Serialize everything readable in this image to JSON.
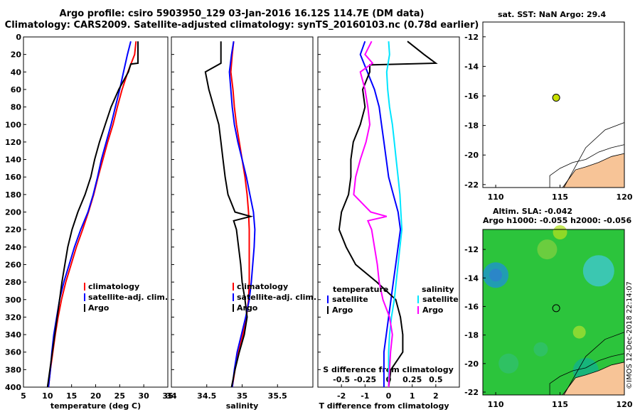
{
  "header": {
    "line1": "Argo profile: csiro 5903950_129 03-Jan-2016 16.12S 114.7E (DM data)",
    "line2": "Climatology: CARS2009. Satellite-adjusted climatology: synTS_20160103.nc (0.78d earlier)"
  },
  "colors": {
    "climatology": "#ff0000",
    "satellite": "#0000ff",
    "argo": "#000000",
    "sat_salinity": "#00e5ff",
    "argo_salinity": "#ff00ff",
    "land": "#f7c497",
    "marker": "#c8e000"
  },
  "watermark": "©IMOS 12-Dec-2018 22:14:07",
  "chart_data": [
    {
      "type": "line",
      "name": "temperature",
      "xlabel": "temperature (deg C)",
      "ylabel": "",
      "xlim": [
        5,
        35
      ],
      "ylim": [
        400,
        0
      ],
      "xticks": [
        "5",
        "10",
        "15",
        "20",
        "25",
        "30",
        "35"
      ],
      "yticks": [
        "0",
        "20",
        "40",
        "60",
        "80",
        "100",
        "120",
        "140",
        "160",
        "180",
        "200",
        "220",
        "240",
        "260",
        "280",
        "300",
        "320",
        "340",
        "360",
        "380",
        "400"
      ],
      "legend": [
        "climatology",
        "satellite-adj. clim.",
        "Argo"
      ],
      "series": [
        {
          "name": "climatology",
          "depth": [
            5,
            20,
            40,
            60,
            80,
            100,
            120,
            140,
            160,
            180,
            200,
            220,
            240,
            260,
            280,
            300,
            320,
            340,
            360,
            380,
            400
          ],
          "values": [
            28.4,
            28.1,
            26.7,
            25.5,
            24.5,
            23.6,
            22.5,
            21.5,
            20.5,
            19.6,
            18.5,
            17.3,
            16.0,
            14.9,
            13.8,
            12.9,
            12.2,
            11.6,
            11.1,
            10.6,
            10.2
          ]
        },
        {
          "name": "satellite-adj. clim.",
          "depth": [
            5,
            20,
            40,
            60,
            80,
            100,
            120,
            140,
            160,
            180,
            200,
            220,
            240,
            260,
            280,
            300,
            320,
            340,
            360,
            380,
            400
          ],
          "values": [
            27.3,
            26.6,
            25.8,
            25.0,
            24.1,
            23.2,
            22.2,
            21.2,
            20.4,
            19.5,
            18.4,
            16.9,
            15.6,
            14.5,
            13.4,
            12.5,
            11.9,
            11.3,
            10.9,
            10.6,
            10.2
          ]
        },
        {
          "name": "Argo",
          "depth": [
            5,
            30,
            31,
            40,
            60,
            80,
            100,
            120,
            140,
            160,
            180,
            200,
            220,
            240,
            260,
            280,
            300,
            320,
            340,
            360,
            380,
            400
          ],
          "values": [
            28.8,
            28.8,
            27.3,
            26.8,
            24.8,
            23.2,
            22.0,
            20.8,
            19.8,
            19.0,
            17.8,
            16.3,
            15.1,
            14.2,
            13.6,
            13.0,
            12.5,
            12.0,
            11.5,
            11.0,
            10.5,
            10.0
          ]
        }
      ]
    },
    {
      "type": "line",
      "name": "salinity",
      "xlabel": "salinity",
      "ylabel": "",
      "xlim": [
        34,
        36
      ],
      "ylim": [
        400,
        0
      ],
      "xticks": [
        "34",
        "34.5",
        "35",
        "35.5"
      ],
      "legend": [
        "climatology",
        "satellite-adj. clim.",
        "Argo"
      ],
      "series": [
        {
          "name": "climatology",
          "depth": [
            5,
            20,
            40,
            60,
            80,
            100,
            120,
            140,
            160,
            180,
            200,
            220,
            240,
            260,
            280,
            300,
            320,
            340,
            360,
            380,
            400
          ],
          "values": [
            34.88,
            34.86,
            34.84,
            34.87,
            34.89,
            34.92,
            34.96,
            35.0,
            35.04,
            35.07,
            35.09,
            35.1,
            35.1,
            35.1,
            35.1,
            35.09,
            35.06,
            35.01,
            34.95,
            34.9,
            34.86
          ]
        },
        {
          "name": "satellite-adj. clim.",
          "depth": [
            5,
            20,
            40,
            60,
            80,
            100,
            120,
            140,
            160,
            180,
            200,
            220,
            240,
            260,
            280,
            300,
            320,
            340,
            360,
            380,
            400
          ],
          "values": [
            34.88,
            34.85,
            34.82,
            34.84,
            34.86,
            34.89,
            34.94,
            35.0,
            35.06,
            35.11,
            35.16,
            35.18,
            35.17,
            35.15,
            35.13,
            35.1,
            35.05,
            34.99,
            34.93,
            34.89,
            34.86
          ]
        },
        {
          "name": "Argo",
          "depth": [
            5,
            30,
            40,
            60,
            80,
            100,
            120,
            140,
            160,
            180,
            200,
            205,
            210,
            220,
            240,
            260,
            280,
            300,
            320,
            340,
            360,
            380,
            400
          ],
          "values": [
            34.7,
            34.7,
            34.48,
            34.53,
            34.6,
            34.67,
            34.7,
            34.73,
            34.76,
            34.8,
            34.9,
            35.12,
            34.88,
            34.92,
            34.95,
            34.98,
            35.0,
            35.04,
            35.07,
            35.03,
            34.96,
            34.9,
            34.85
          ]
        }
      ]
    },
    {
      "type": "line",
      "name": "difference from climatology",
      "xlabel": "T difference from climatology",
      "x2label": "S difference from climatology",
      "xlim": [
        -3,
        3
      ],
      "x2lim": [
        -0.75,
        0.75
      ],
      "ylim": [
        400,
        0
      ],
      "xticks": [
        "-2",
        "-1",
        "0",
        "1",
        "2"
      ],
      "x2ticks": [
        "-0.5",
        "-0.25",
        "0",
        "0.25",
        "0.5"
      ],
      "legend": {
        "temperature_header": "temperature",
        "salinity_header": "salinity",
        "temperature": [
          "satellite",
          "Argo"
        ],
        "salinity": [
          "satellite",
          "Argo"
        ]
      },
      "series": [
        {
          "name": "temperature satellite",
          "axis": "T",
          "depth": [
            5,
            20,
            40,
            60,
            80,
            100,
            120,
            140,
            160,
            180,
            200,
            220,
            240,
            260,
            280,
            300,
            320,
            340,
            360,
            380,
            400
          ],
          "values": [
            -1.0,
            -1.2,
            -0.9,
            -0.6,
            -0.4,
            -0.3,
            -0.2,
            -0.1,
            0.0,
            0.2,
            0.4,
            0.5,
            0.4,
            0.3,
            0.2,
            0.1,
            0.0,
            -0.1,
            -0.2,
            -0.2,
            -0.2
          ]
        },
        {
          "name": "temperature Argo",
          "axis": "T",
          "depth": [
            5,
            20,
            30,
            32,
            40,
            60,
            80,
            100,
            120,
            140,
            160,
            180,
            200,
            220,
            240,
            260,
            280,
            300,
            320,
            340,
            360,
            380,
            400
          ],
          "values": [
            0.8,
            1.5,
            2.0,
            -0.8,
            -0.8,
            -1.1,
            -1.0,
            -1.2,
            -1.5,
            -1.6,
            -1.6,
            -1.7,
            -2.0,
            -2.1,
            -1.8,
            -1.4,
            -0.5,
            0.3,
            0.5,
            0.6,
            0.6,
            0.1,
            0.0
          ]
        },
        {
          "name": "salinity satellite",
          "axis": "S",
          "depth": [
            5,
            20,
            40,
            60,
            80,
            100,
            120,
            140,
            160,
            180,
            200,
            220,
            240,
            260,
            280,
            300,
            320,
            340,
            360,
            380,
            400
          ],
          "values": [
            0.0,
            0.01,
            -0.02,
            -0.01,
            0.01,
            0.04,
            0.06,
            0.08,
            0.1,
            0.12,
            0.13,
            0.14,
            0.12,
            0.1,
            0.08,
            0.06,
            0.03,
            0.01,
            0.0,
            0.0,
            0.0
          ]
        },
        {
          "name": "salinity Argo",
          "axis": "S",
          "depth": [
            5,
            20,
            30,
            40,
            60,
            80,
            100,
            120,
            140,
            160,
            180,
            200,
            205,
            210,
            220,
            240,
            260,
            280,
            300,
            320,
            340,
            360,
            380,
            400
          ],
          "values": [
            -0.18,
            -0.25,
            -0.17,
            -0.3,
            -0.25,
            -0.22,
            -0.2,
            -0.24,
            -0.3,
            -0.35,
            -0.37,
            -0.19,
            -0.02,
            -0.22,
            -0.18,
            -0.15,
            -0.12,
            -0.1,
            -0.06,
            0.01,
            0.04,
            0.02,
            0.01,
            0.0
          ]
        }
      ]
    },
    {
      "type": "map",
      "name": "sat. SST",
      "title": "sat. SST: NaN Argo: 29.4",
      "xticks": [
        "110",
        "115",
        "120"
      ],
      "yticks": [
        "-12",
        "-14",
        "-16",
        "-18",
        "-20",
        "-22"
      ],
      "xlim": [
        109,
        120
      ],
      "ylim": [
        -22.2,
        -11
      ],
      "argo_position": {
        "lon": 114.7,
        "lat": -16.12
      }
    },
    {
      "type": "map",
      "name": "Altim. SLA",
      "title": "Altim. SLA: -0.042",
      "subtitle": "Argo h1000: -0.055 h2000: -0.056",
      "xticks": [
        "110",
        "115",
        "120"
      ],
      "yticks": [
        "-12",
        "-14",
        "-16",
        "-18",
        "-20",
        "-22"
      ],
      "xlim": [
        109,
        120
      ],
      "ylim": [
        -22.2,
        -10.6
      ],
      "argo_position": {
        "lon": 114.7,
        "lat": -16.12
      }
    }
  ]
}
